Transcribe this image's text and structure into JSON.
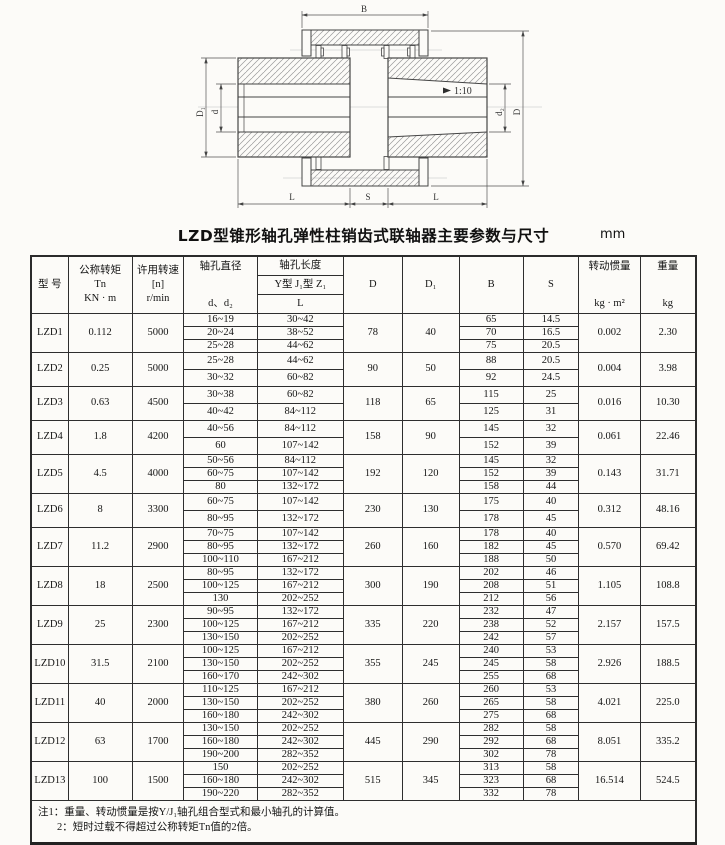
{
  "title": "LZD型锥形轴孔弹性柱销齿式联轴器主要参数与尺寸",
  "unit": "mm",
  "drawing": {
    "labels": {
      "B": "B",
      "D": "D",
      "D1": "D₁",
      "d": "d",
      "d2": "d₂",
      "L_left": "L",
      "S": "S",
      "L_right": "L",
      "taper": "1:10"
    }
  },
  "table": {
    "header": {
      "model": "型  号",
      "torque_title": "公称转矩",
      "torque_sym": "Tn",
      "torque_unit": "KN · m",
      "speed_title": "许用转速",
      "speed_sym": "[n]",
      "speed_unit": "r/min",
      "bore_title": "轴孔直径",
      "bore_sym": "d、d₂",
      "length_title": "轴孔长度",
      "length_types": "Y型  J₁型  Z₁",
      "length_sym": "L",
      "D": "D",
      "D1": "D₁",
      "B": "B",
      "S": "S",
      "inertia_title": "转动惯量",
      "inertia_unit": "kg · m²",
      "weight_title": "重量",
      "weight_unit": "kg"
    },
    "rows": [
      {
        "model": "LZD1",
        "torque": "0.112",
        "speed": "5000",
        "bores": [
          [
            "16~19",
            "30~42"
          ],
          [
            "20~24",
            "38~52"
          ],
          [
            "25~28",
            "44~62"
          ]
        ],
        "D": "78",
        "D1": "40",
        "bs": [
          [
            "65",
            "14.5"
          ],
          [
            "70",
            "16.5"
          ],
          [
            "75",
            "20.5"
          ]
        ],
        "inertia": "0.002",
        "weight": "2.30"
      },
      {
        "model": "LZD2",
        "torque": "0.25",
        "speed": "5000",
        "bores": [
          [
            "25~28",
            "44~62"
          ],
          [
            "30~32",
            "60~82"
          ]
        ],
        "D": "90",
        "D1": "50",
        "bs": [
          [
            "88",
            "20.5"
          ],
          [
            "92",
            "24.5"
          ]
        ],
        "inertia": "0.004",
        "weight": "3.98"
      },
      {
        "model": "LZD3",
        "torque": "0.63",
        "speed": "4500",
        "bores": [
          [
            "30~38",
            "60~82"
          ],
          [
            "40~42",
            "84~112"
          ]
        ],
        "D": "118",
        "D1": "65",
        "bs": [
          [
            "115",
            "25"
          ],
          [
            "125",
            "31"
          ]
        ],
        "inertia": "0.016",
        "weight": "10.30"
      },
      {
        "model": "LZD4",
        "torque": "1.8",
        "speed": "4200",
        "bores": [
          [
            "40~56",
            "84~112"
          ],
          [
            "60",
            "107~142"
          ]
        ],
        "D": "158",
        "D1": "90",
        "bs": [
          [
            "145",
            "32"
          ],
          [
            "152",
            "39"
          ]
        ],
        "inertia": "0.061",
        "weight": "22.46"
      },
      {
        "model": "LZD5",
        "torque": "4.5",
        "speed": "4000",
        "bores": [
          [
            "50~56",
            "84~112"
          ],
          [
            "60~75",
            "107~142"
          ],
          [
            "80",
            "132~172"
          ]
        ],
        "D": "192",
        "D1": "120",
        "bs": [
          [
            "145",
            "32"
          ],
          [
            "152",
            "39"
          ],
          [
            "158",
            "44"
          ]
        ],
        "inertia": "0.143",
        "weight": "31.71"
      },
      {
        "model": "LZD6",
        "torque": "8",
        "speed": "3300",
        "bores": [
          [
            "60~75",
            "107~142"
          ],
          [
            "80~95",
            "132~172"
          ]
        ],
        "D": "230",
        "D1": "130",
        "bs": [
          [
            "175",
            "40"
          ],
          [
            "178",
            "45"
          ]
        ],
        "inertia": "0.312",
        "weight": "48.16"
      },
      {
        "model": "LZD7",
        "torque": "11.2",
        "speed": "2900",
        "bores": [
          [
            "70~75",
            "107~142"
          ],
          [
            "80~95",
            "132~172"
          ],
          [
            "100~110",
            "167~212"
          ]
        ],
        "D": "260",
        "D1": "160",
        "bs": [
          [
            "178",
            "40"
          ],
          [
            "182",
            "45"
          ],
          [
            "188",
            "50"
          ]
        ],
        "inertia": "0.570",
        "weight": "69.42"
      },
      {
        "model": "LZD8",
        "torque": "18",
        "speed": "2500",
        "bores": [
          [
            "80~95",
            "132~172"
          ],
          [
            "100~125",
            "167~212"
          ],
          [
            "130",
            "202~252"
          ]
        ],
        "D": "300",
        "D1": "190",
        "bs": [
          [
            "202",
            "46"
          ],
          [
            "208",
            "51"
          ],
          [
            "212",
            "56"
          ]
        ],
        "inertia": "1.105",
        "weight": "108.8"
      },
      {
        "model": "LZD9",
        "torque": "25",
        "speed": "2300",
        "bores": [
          [
            "90~95",
            "132~172"
          ],
          [
            "100~125",
            "167~212"
          ],
          [
            "130~150",
            "202~252"
          ]
        ],
        "D": "335",
        "D1": "220",
        "bs": [
          [
            "232",
            "47"
          ],
          [
            "238",
            "52"
          ],
          [
            "242",
            "57"
          ]
        ],
        "inertia": "2.157",
        "weight": "157.5"
      },
      {
        "model": "LZD10",
        "torque": "31.5",
        "speed": "2100",
        "bores": [
          [
            "100~125",
            "167~212"
          ],
          [
            "130~150",
            "202~252"
          ],
          [
            "160~170",
            "242~302"
          ]
        ],
        "D": "355",
        "D1": "245",
        "bs": [
          [
            "240",
            "53"
          ],
          [
            "245",
            "58"
          ],
          [
            "255",
            "68"
          ]
        ],
        "inertia": "2.926",
        "weight": "188.5"
      },
      {
        "model": "LZD11",
        "torque": "40",
        "speed": "2000",
        "bores": [
          [
            "110~125",
            "167~212"
          ],
          [
            "130~150",
            "202~252"
          ],
          [
            "160~180",
            "242~302"
          ]
        ],
        "D": "380",
        "D1": "260",
        "bs": [
          [
            "260",
            "53"
          ],
          [
            "265",
            "58"
          ],
          [
            "275",
            "68"
          ]
        ],
        "inertia": "4.021",
        "weight": "225.0"
      },
      {
        "model": "LZD12",
        "torque": "63",
        "speed": "1700",
        "bores": [
          [
            "130~150",
            "202~252"
          ],
          [
            "160~180",
            "242~302"
          ],
          [
            "190~200",
            "282~352"
          ]
        ],
        "D": "445",
        "D1": "290",
        "bs": [
          [
            "282",
            "58"
          ],
          [
            "292",
            "68"
          ],
          [
            "302",
            "78"
          ]
        ],
        "inertia": "8.051",
        "weight": "335.2"
      },
      {
        "model": "LZD13",
        "torque": "100",
        "speed": "1500",
        "bores": [
          [
            "150",
            "202~252"
          ],
          [
            "160~180",
            "242~302"
          ],
          [
            "190~220",
            "282~352"
          ]
        ],
        "D": "515",
        "D1": "345",
        "bs": [
          [
            "313",
            "58"
          ],
          [
            "323",
            "68"
          ],
          [
            "332",
            "78"
          ]
        ],
        "inertia": "16.514",
        "weight": "524.5"
      }
    ],
    "notes": [
      "注1：重量、转动惯量是按Y/J₁轴孔组合型式和最小轴孔的计算值。",
      "2：短时过载不得超过公称转矩Tn值的2倍。"
    ]
  }
}
